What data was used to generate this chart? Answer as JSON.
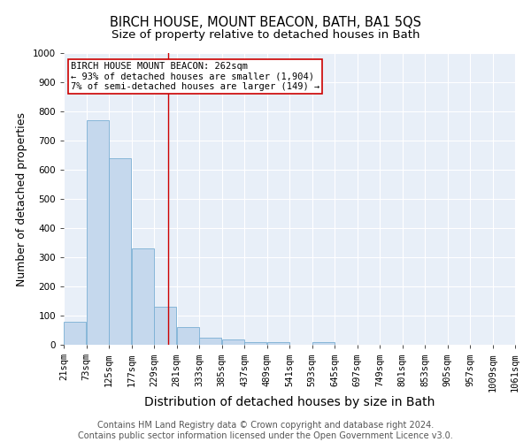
{
  "title": "BIRCH HOUSE, MOUNT BEACON, BATH, BA1 5QS",
  "subtitle": "Size of property relative to detached houses in Bath",
  "xlabel": "Distribution of detached houses by size in Bath",
  "ylabel": "Number of detached properties",
  "bin_edges": [
    21,
    73,
    125,
    177,
    229,
    281,
    333,
    385,
    437,
    489,
    541,
    593,
    645,
    697,
    749,
    801,
    853,
    905,
    957,
    1009,
    1061
  ],
  "bar_heights": [
    80,
    770,
    640,
    330,
    130,
    60,
    25,
    18,
    10,
    10,
    0,
    10,
    0,
    0,
    0,
    0,
    0,
    0,
    0,
    0
  ],
  "bar_color": "#c5d8ed",
  "bar_edge_color": "#7aafd4",
  "background_color": "#e8eff8",
  "red_line_x": 262,
  "annotation_title": "BIRCH HOUSE MOUNT BEACON: 262sqm",
  "annotation_line1": "← 93% of detached houses are smaller (1,904)",
  "annotation_line2": "7% of semi-detached houses are larger (149) →",
  "annotation_box_color": "#cc0000",
  "ylim": [
    0,
    1000
  ],
  "yticks": [
    0,
    100,
    200,
    300,
    400,
    500,
    600,
    700,
    800,
    900,
    1000
  ],
  "footer_line1": "Contains HM Land Registry data © Crown copyright and database right 2024.",
  "footer_line2": "Contains public sector information licensed under the Open Government Licence v3.0.",
  "title_fontsize": 10.5,
  "subtitle_fontsize": 9.5,
  "xlabel_fontsize": 10,
  "ylabel_fontsize": 9,
  "tick_fontsize": 7.5,
  "annotation_fontsize": 7.5,
  "footer_fontsize": 7
}
